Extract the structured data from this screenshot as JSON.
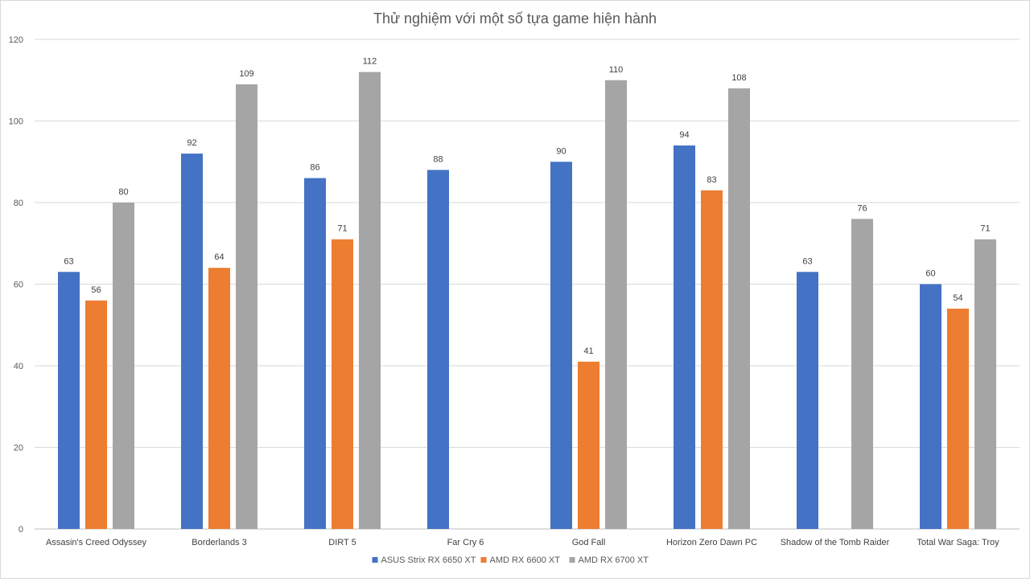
{
  "chart_data": {
    "type": "bar",
    "title": "Thử nghiệm với một số tựa game hiện hành",
    "xlabel": "",
    "ylabel": "",
    "ylim": [
      0,
      120
    ],
    "yticks": [
      0,
      20,
      40,
      60,
      80,
      100,
      120
    ],
    "grid": true,
    "legend_position": "bottom",
    "categories": [
      "Assasin's Creed Odyssey",
      "Borderlands 3",
      "DIRT 5",
      "Far Cry 6",
      "God Fall",
      "Horizon Zero Dawn PC",
      "Shadow of the Tomb Raider",
      "Total War Saga: Troy"
    ],
    "series": [
      {
        "name": "ASUS Strix RX 6650 XT",
        "color": "#4472c4",
        "values": [
          63,
          92,
          86,
          88,
          90,
          94,
          63,
          60
        ]
      },
      {
        "name": "AMD RX 6600 XT",
        "color": "#ed7d31",
        "values": [
          56,
          64,
          71,
          null,
          41,
          83,
          null,
          54
        ]
      },
      {
        "name": "AMD RX 6700 XT",
        "color": "#a5a5a5",
        "values": [
          80,
          109,
          112,
          null,
          110,
          108,
          76,
          71
        ]
      }
    ]
  }
}
